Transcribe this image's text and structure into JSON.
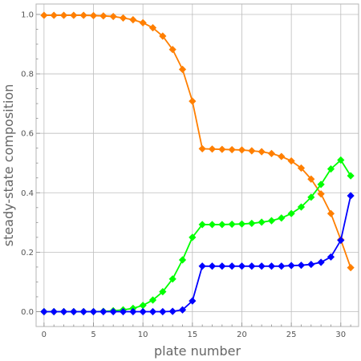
{
  "chart_data": {
    "type": "line",
    "xlabel": "plate number",
    "ylabel": "steady-state composition",
    "xlim": [
      -0.8,
      31.8
    ],
    "ylim": [
      -0.05,
      1.035
    ],
    "xticks": [
      0,
      5,
      10,
      15,
      20,
      25,
      30
    ],
    "xtick_labels": [
      "0",
      "5",
      "10",
      "15",
      "20",
      "25",
      "30"
    ],
    "yticks": [
      0.0,
      0.2,
      0.4,
      0.6,
      0.8,
      1.0
    ],
    "ytick_labels": [
      "0.0",
      "0.2",
      "0.4",
      "0.6",
      "0.8",
      "1.0"
    ],
    "grid": true,
    "marker": "diamond",
    "x": [
      0,
      1,
      2,
      3,
      4,
      5,
      6,
      7,
      8,
      9,
      10,
      11,
      12,
      13,
      14,
      15,
      16,
      17,
      18,
      19,
      20,
      21,
      22,
      23,
      24,
      25,
      26,
      27,
      28,
      29,
      30,
      31
    ],
    "series": [
      {
        "color": "#ff7f00",
        "values": [
          0.997,
          0.997,
          0.997,
          0.997,
          0.997,
          0.996,
          0.995,
          0.993,
          0.988,
          0.982,
          0.972,
          0.955,
          0.927,
          0.882,
          0.815,
          0.708,
          0.548,
          0.547,
          0.546,
          0.545,
          0.544,
          0.541,
          0.538,
          0.532,
          0.522,
          0.507,
          0.483,
          0.446,
          0.396,
          0.33,
          0.242,
          0.148
        ]
      },
      {
        "color": "#00ff00",
        "values": [
          0.0,
          0.0,
          0.0,
          0.0,
          0.0,
          0.0,
          0.001,
          0.003,
          0.006,
          0.011,
          0.021,
          0.039,
          0.067,
          0.11,
          0.174,
          0.25,
          0.293,
          0.293,
          0.293,
          0.294,
          0.295,
          0.297,
          0.301,
          0.306,
          0.315,
          0.33,
          0.352,
          0.385,
          0.428,
          0.48,
          0.51,
          0.457
        ]
      },
      {
        "color": "#0000ff",
        "values": [
          0.0,
          0.0,
          0.0,
          0.0,
          0.0,
          0.0,
          0.0,
          0.0,
          0.0,
          0.0,
          0.0,
          0.0,
          0.0,
          0.001,
          0.006,
          0.036,
          0.153,
          0.153,
          0.153,
          0.153,
          0.153,
          0.153,
          0.153,
          0.153,
          0.153,
          0.155,
          0.156,
          0.159,
          0.166,
          0.184,
          0.24,
          0.39
        ]
      }
    ]
  }
}
